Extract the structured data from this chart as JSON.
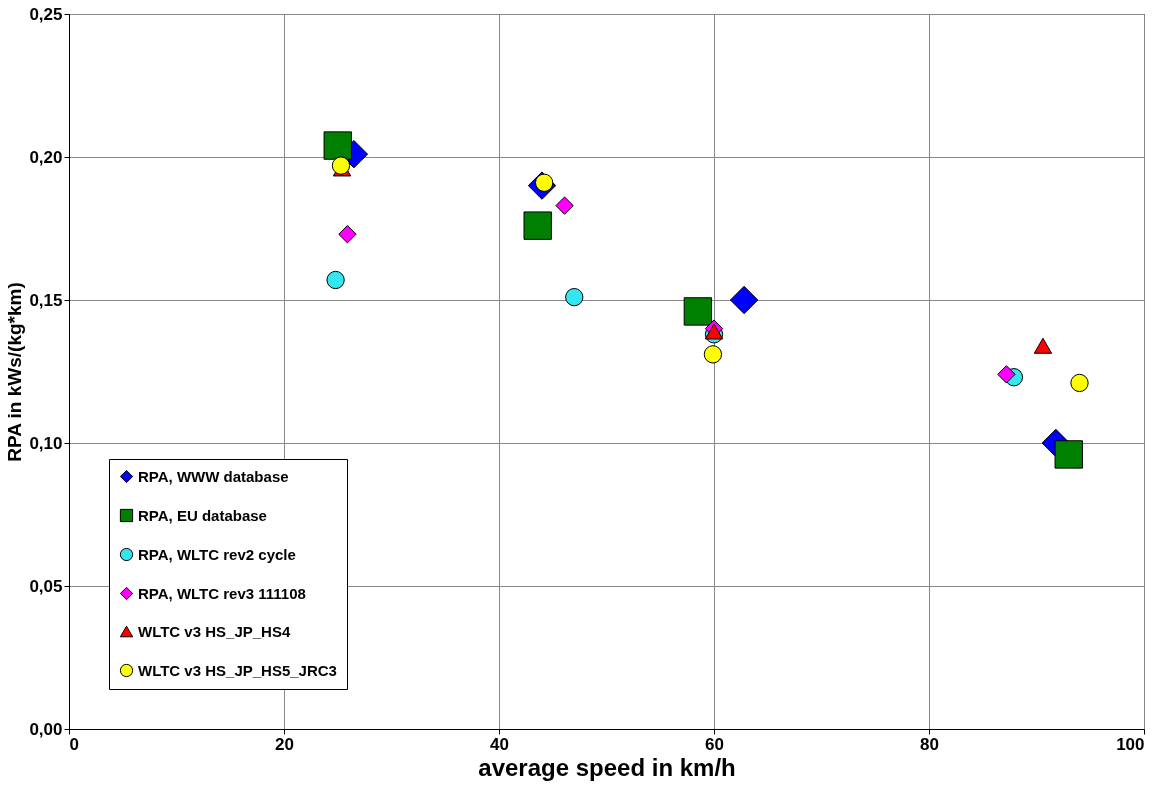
{
  "chart_data": {
    "type": "scatter",
    "xlabel": "average speed in km/h",
    "ylabel": "RPA in kWs/(kg*km)",
    "xlim": [
      0,
      100
    ],
    "xticks": [
      0,
      20,
      40,
      60,
      80,
      100
    ],
    "ylim": [
      0,
      0.25
    ],
    "yticks": [
      {
        "value": 0,
        "label": "0,00"
      },
      {
        "value": 0.05,
        "label": "0,05"
      },
      {
        "value": 0.1,
        "label": "0,10"
      },
      {
        "value": 0.15,
        "label": "0,15"
      },
      {
        "value": 0.2,
        "label": "0,20"
      },
      {
        "value": 0.25,
        "label": "0,25"
      }
    ],
    "grid": true,
    "legend": "bottom left",
    "series": [
      {
        "name": "RPA, WWW database",
        "color": "#0000ff",
        "marker": "diamond",
        "x": [
          26.5,
          44.0,
          62.8,
          91.8
        ],
        "values": [
          0.201,
          0.19,
          0.15,
          0.1
        ]
      },
      {
        "name": "RPA, EU database",
        "color": "#008000",
        "marker": "square",
        "x": [
          25.0,
          43.6,
          58.5,
          93.0
        ],
        "values": [
          0.204,
          0.176,
          0.146,
          0.096
        ]
      },
      {
        "name": "RPA, WLTC rev2 cycle",
        "color": "#33e6f0",
        "marker": "circle",
        "x": [
          24.8,
          47.0,
          60.0,
          87.9
        ],
        "values": [
          0.157,
          0.151,
          0.138,
          0.123
        ]
      },
      {
        "name": "RPA, WLTC rev3 111108",
        "color": "#ff00ff",
        "marker": "diamond",
        "x": [
          25.9,
          46.1,
          60.0,
          87.2
        ],
        "values": [
          0.173,
          0.183,
          0.14,
          0.124
        ]
      },
      {
        "name": "WLTC v3 HS_JP_HS4",
        "color": "#ff0000",
        "marker": "triangle",
        "x": [
          25.4,
          60.0,
          90.6
        ],
        "values": [
          0.196,
          0.139,
          0.134
        ]
      },
      {
        "name": "WLTC v3 HS_JP_HS5_JRC3",
        "color": "#ffff00",
        "marker": "circle",
        "x": [
          25.3,
          44.2,
          59.9,
          94.0
        ],
        "values": [
          0.197,
          0.191,
          0.131,
          0.121
        ]
      }
    ]
  }
}
